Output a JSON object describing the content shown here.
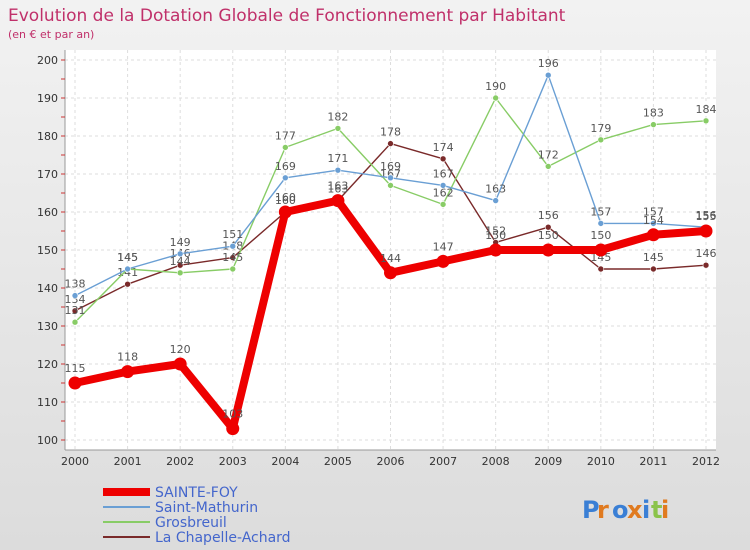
{
  "chart_data": {
    "type": "line",
    "title": "Evolution de la Dotation Globale de Fonctionnement par Habitant",
    "subtitle": "(en € et par an)",
    "x": [
      "2000",
      "2001",
      "2002",
      "2003",
      "2004",
      "2005",
      "2006",
      "2007",
      "2008",
      "2009",
      "2010",
      "2011",
      "2012"
    ],
    "ylim": [
      100,
      200
    ],
    "yticks": [
      100,
      110,
      120,
      130,
      140,
      150,
      160,
      170,
      180,
      190,
      200
    ],
    "series": [
      {
        "name": "SAINTE-FOY",
        "color": "#ee0000",
        "values": [
          115,
          118,
          120,
          103,
          160,
          163,
          144,
          147,
          150,
          150,
          150,
          154,
          155
        ]
      },
      {
        "name": "Saint-Mathurin",
        "color": "#6a9fd4",
        "values": [
          138,
          145,
          149,
          151,
          169,
          171,
          169,
          167,
          163,
          196,
          157,
          157,
          156
        ]
      },
      {
        "name": "Grosbreuil",
        "color": "#88cc66",
        "values": [
          131,
          145,
          144,
          145,
          177,
          182,
          167,
          162,
          190,
          172,
          179,
          183,
          184
        ]
      },
      {
        "name": "La Chapelle-Achard",
        "color": "#7a2a2a",
        "values": [
          134,
          141,
          146,
          148,
          160,
          163,
          178,
          174,
          152,
          156,
          145,
          145,
          146
        ]
      }
    ],
    "watermark": "Proxiti"
  }
}
